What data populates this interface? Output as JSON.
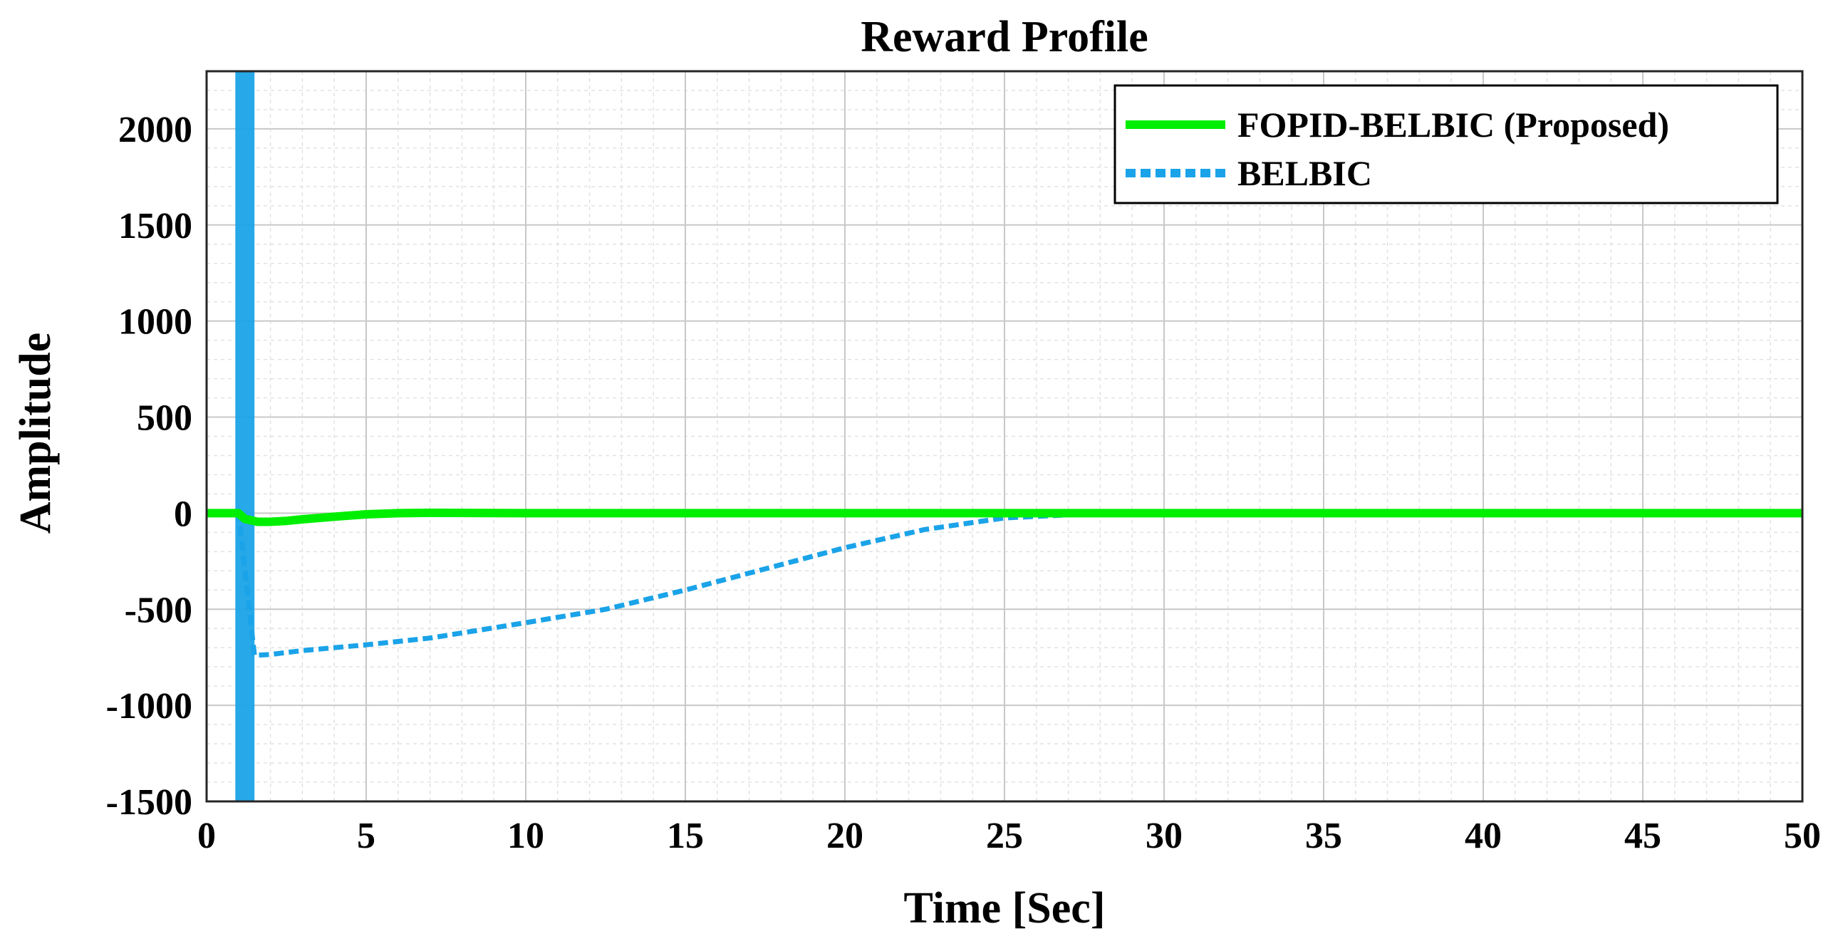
{
  "chart_data": {
    "type": "line",
    "title": "Reward Profile",
    "xlabel": "Time [Sec]",
    "ylabel": "Amplitude",
    "xlim": [
      0,
      50
    ],
    "ylim": [
      -1500,
      2300
    ],
    "xticks": [
      0,
      5,
      10,
      15,
      20,
      25,
      30,
      35,
      40,
      45,
      50
    ],
    "yticks": [
      -1500,
      -1000,
      -500,
      0,
      500,
      1000,
      1500,
      2000
    ],
    "grid": true,
    "minor_grid": true,
    "legend_position": "top-right",
    "series": [
      {
        "name": "FOPID-BELBIC (Proposed)",
        "color": "#00ee00",
        "style": "solid",
        "x": [
          0,
          1.0,
          1.2,
          1.6,
          2.0,
          2.5,
          3.0,
          4.0,
          5.0,
          6.0,
          7.0,
          10,
          20,
          30,
          40,
          50
        ],
        "y": [
          0,
          0,
          -30,
          -45,
          -45,
          -40,
          -32,
          -18,
          -6,
          0,
          2,
          0,
          0,
          0,
          0,
          0
        ]
      },
      {
        "name": "BELBIC",
        "color": "#1aa3e8",
        "style": "dashed",
        "x": [
          0,
          1.0,
          1.5,
          2.0,
          3.0,
          4.0,
          5.0,
          7.0,
          10,
          12.5,
          15,
          17.5,
          20,
          22.5,
          25,
          27.5,
          30,
          35,
          40,
          45,
          50
        ],
        "y": [
          0,
          0,
          -740,
          -735,
          -715,
          -700,
          -685,
          -650,
          -570,
          -500,
          -400,
          -290,
          -180,
          -85,
          -25,
          -5,
          0,
          0,
          0,
          0,
          0
        ],
        "spike": {
          "x_start": 0.9,
          "x_end": 1.5
        }
      }
    ]
  }
}
